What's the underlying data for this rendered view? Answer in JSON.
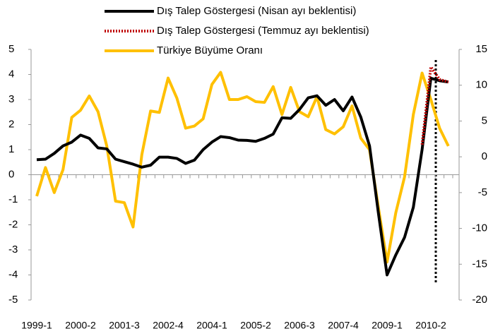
{
  "chart_data": {
    "type": "line",
    "categories": [
      "1999-1",
      null,
      null,
      null,
      null,
      "2000-2",
      null,
      null,
      null,
      null,
      "2001-3",
      null,
      null,
      null,
      null,
      "2002-4",
      null,
      null,
      null,
      null,
      "2004-1",
      null,
      null,
      null,
      null,
      "2005-2",
      null,
      null,
      null,
      null,
      "2006-3",
      null,
      null,
      null,
      null,
      "2007-4",
      null,
      null,
      null,
      null,
      "2009-1",
      null,
      null,
      null,
      null,
      "2010-2",
      null,
      null
    ],
    "series": [
      {
        "name": "Dış Talep Göstergesi (Nisan ayı beklentisi)",
        "color": "#000000",
        "dash": "solid",
        "axis": "y",
        "values": [
          0.6,
          0.62,
          0.85,
          1.15,
          1.3,
          1.58,
          1.45,
          1.07,
          1.03,
          0.62,
          0.52,
          0.42,
          0.3,
          0.38,
          0.7,
          0.7,
          0.65,
          0.45,
          0.58,
          1.0,
          1.3,
          1.52,
          1.48,
          1.38,
          1.37,
          1.33,
          1.45,
          1.62,
          2.27,
          2.25,
          2.6,
          3.07,
          3.15,
          2.77,
          3.0,
          2.55,
          3.1,
          2.3,
          1.15,
          -1.5,
          -4.0,
          -3.2,
          -2.5,
          -1.3,
          1.0,
          3.85,
          3.75,
          3.7
        ]
      },
      {
        "name": "Dış Talep Göstergesi (Temmuz ayı beklentisi)",
        "color": "#c00000",
        "dash": "dotted",
        "axis": "y",
        "values": [
          null,
          null,
          null,
          null,
          null,
          null,
          null,
          null,
          null,
          null,
          null,
          null,
          null,
          null,
          null,
          null,
          null,
          null,
          null,
          null,
          null,
          null,
          null,
          null,
          null,
          null,
          null,
          null,
          null,
          null,
          null,
          null,
          null,
          null,
          null,
          null,
          null,
          null,
          null,
          null,
          null,
          null,
          null,
          null,
          1.2,
          4.3,
          3.8,
          3.7
        ]
      },
      {
        "name": "Türkiye Büyüme Oranı",
        "color": "#ffc000",
        "dash": "solid",
        "axis": "y2",
        "values": [
          -5.5,
          -1.5,
          -5.0,
          -1.8,
          5.5,
          6.5,
          8.5,
          6.3,
          1.5,
          -6.2,
          -6.4,
          -9.8,
          0.3,
          6.4,
          6.2,
          11.0,
          8.2,
          4.0,
          4.3,
          5.3,
          10.1,
          11.8,
          8.0,
          8.0,
          8.4,
          7.7,
          7.6,
          9.8,
          5.9,
          9.7,
          6.3,
          5.6,
          8.4,
          3.8,
          3.2,
          4.2,
          7.1,
          2.6,
          1.0,
          -7.0,
          -14.7,
          -7.8,
          -2.8,
          5.9,
          11.7,
          8.0,
          4.0,
          1.5
        ]
      }
    ],
    "ylim": [
      -5,
      5
    ],
    "yticks": [
      -5,
      -4,
      -3,
      -2,
      -1,
      0,
      1,
      2,
      3,
      4,
      5
    ],
    "y2lim": [
      -20,
      15
    ],
    "y2ticks": [
      -20,
      -15,
      -10,
      -5,
      0,
      5,
      10,
      15
    ],
    "legend": "top"
  }
}
